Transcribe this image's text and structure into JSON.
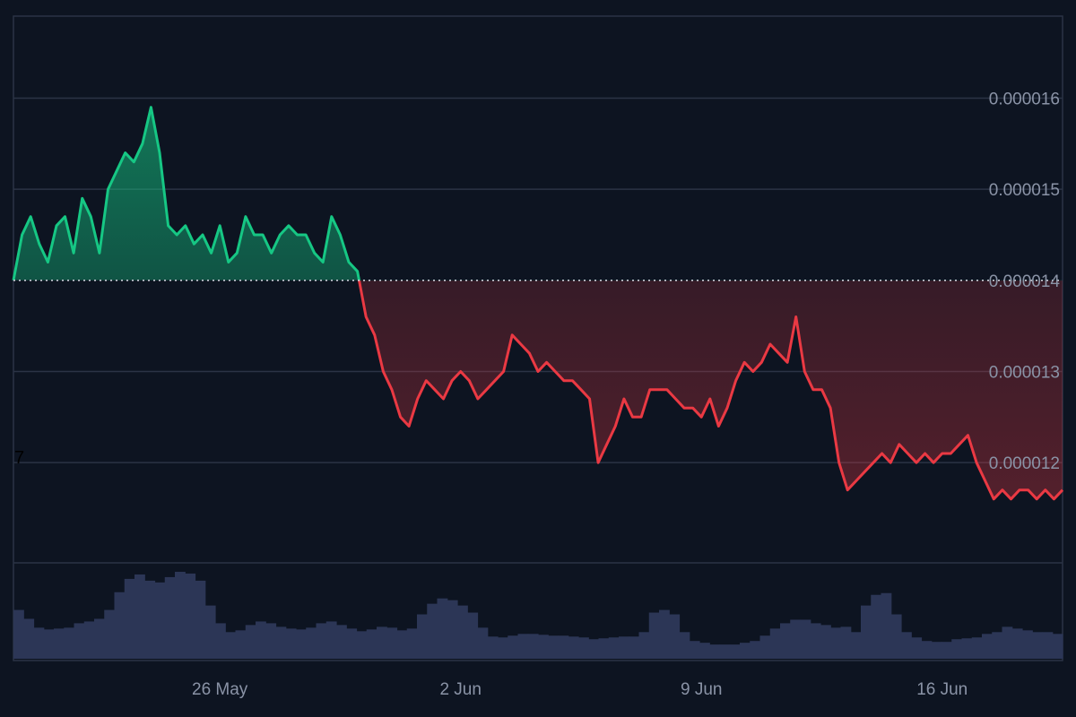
{
  "chart_data": {
    "type": "area",
    "price_series": {
      "x": [
        "2024-05-20T00:00",
        "2024-05-20T06:00",
        "2024-05-20T12:00",
        "2024-05-20T18:00",
        "2024-05-21T00:00",
        "2024-05-21T06:00",
        "2024-05-21T12:00",
        "2024-05-21T18:00",
        "2024-05-22T00:00",
        "2024-05-22T06:00",
        "2024-05-22T12:00",
        "2024-05-22T18:00",
        "2024-05-23T00:00",
        "2024-05-23T06:00",
        "2024-05-23T12:00",
        "2024-05-23T18:00",
        "2024-05-24T00:00",
        "2024-05-24T06:00",
        "2024-05-24T12:00",
        "2024-05-24T18:00",
        "2024-05-25T00:00",
        "2024-05-25T06:00",
        "2024-05-25T12:00",
        "2024-05-25T18:00",
        "2024-05-26T00:00",
        "2024-05-26T06:00",
        "2024-05-26T12:00",
        "2024-05-26T18:00",
        "2024-05-27T00:00",
        "2024-05-27T06:00",
        "2024-05-27T12:00",
        "2024-05-27T18:00",
        "2024-05-28T00:00",
        "2024-05-28T06:00",
        "2024-05-28T12:00",
        "2024-05-28T18:00",
        "2024-05-29T00:00",
        "2024-05-29T06:00",
        "2024-05-29T12:00",
        "2024-05-29T18:00",
        "2024-05-30T00:00",
        "2024-05-30T06:00",
        "2024-05-30T12:00",
        "2024-05-30T18:00",
        "2024-05-31T00:00",
        "2024-05-31T06:00",
        "2024-05-31T12:00",
        "2024-05-31T18:00",
        "2024-06-01T00:00",
        "2024-06-01T06:00",
        "2024-06-01T12:00",
        "2024-06-01T18:00",
        "2024-06-02T00:00",
        "2024-06-02T06:00",
        "2024-06-02T12:00",
        "2024-06-02T18:00",
        "2024-06-03T00:00",
        "2024-06-03T06:00",
        "2024-06-03T12:00",
        "2024-06-03T18:00",
        "2024-06-04T00:00",
        "2024-06-04T06:00",
        "2024-06-04T12:00",
        "2024-06-04T18:00",
        "2024-06-05T00:00",
        "2024-06-05T06:00",
        "2024-06-05T12:00",
        "2024-06-05T18:00",
        "2024-06-06T00:00",
        "2024-06-06T06:00",
        "2024-06-06T12:00",
        "2024-06-06T18:00",
        "2024-06-07T00:00",
        "2024-06-07T06:00",
        "2024-06-07T12:00",
        "2024-06-07T18:00",
        "2024-06-08T00:00",
        "2024-06-08T06:00",
        "2024-06-08T12:00",
        "2024-06-08T18:00",
        "2024-06-09T00:00",
        "2024-06-09T06:00",
        "2024-06-09T12:00",
        "2024-06-09T18:00",
        "2024-06-10T00:00",
        "2024-06-10T06:00",
        "2024-06-10T12:00",
        "2024-06-10T18:00",
        "2024-06-11T00:00",
        "2024-06-11T06:00",
        "2024-06-11T12:00",
        "2024-06-11T18:00",
        "2024-06-12T00:00",
        "2024-06-12T06:00",
        "2024-06-12T12:00",
        "2024-06-12T18:00",
        "2024-06-13T00:00",
        "2024-06-13T06:00",
        "2024-06-13T12:00",
        "2024-06-13T18:00",
        "2024-06-14T00:00",
        "2024-06-14T06:00",
        "2024-06-14T12:00",
        "2024-06-14T18:00",
        "2024-06-15T00:00",
        "2024-06-15T06:00",
        "2024-06-15T12:00",
        "2024-06-15T18:00",
        "2024-06-16T00:00",
        "2024-06-16T06:00",
        "2024-06-16T12:00",
        "2024-06-16T18:00",
        "2024-06-17T00:00",
        "2024-06-17T06:00",
        "2024-06-17T12:00",
        "2024-06-17T18:00",
        "2024-06-18T00:00",
        "2024-06-18T06:00",
        "2024-06-18T12:00",
        "2024-06-18T18:00",
        "2024-06-19T00:00",
        "2024-06-19T06:00",
        "2024-06-19T12:00"
      ],
      "y": [
        1.4e-05,
        1.45e-05,
        1.47e-05,
        1.44e-05,
        1.42e-05,
        1.46e-05,
        1.47e-05,
        1.43e-05,
        1.49e-05,
        1.47e-05,
        1.43e-05,
        1.5e-05,
        1.52e-05,
        1.54e-05,
        1.53e-05,
        1.55e-05,
        1.59e-05,
        1.54e-05,
        1.46e-05,
        1.45e-05,
        1.46e-05,
        1.44e-05,
        1.45e-05,
        1.43e-05,
        1.46e-05,
        1.42e-05,
        1.43e-05,
        1.47e-05,
        1.45e-05,
        1.45e-05,
        1.43e-05,
        1.45e-05,
        1.46e-05,
        1.45e-05,
        1.45e-05,
        1.43e-05,
        1.42e-05,
        1.47e-05,
        1.45e-05,
        1.42e-05,
        1.41e-05,
        1.36e-05,
        1.34e-05,
        1.3e-05,
        1.28e-05,
        1.25e-05,
        1.24e-05,
        1.27e-05,
        1.29e-05,
        1.28e-05,
        1.27e-05,
        1.29e-05,
        1.3e-05,
        1.29e-05,
        1.27e-05,
        1.28e-05,
        1.29e-05,
        1.3e-05,
        1.34e-05,
        1.33e-05,
        1.32e-05,
        1.3e-05,
        1.31e-05,
        1.3e-05,
        1.29e-05,
        1.29e-05,
        1.28e-05,
        1.27e-05,
        1.2e-05,
        1.22e-05,
        1.24e-05,
        1.27e-05,
        1.25e-05,
        1.25e-05,
        1.28e-05,
        1.28e-05,
        1.28e-05,
        1.27e-05,
        1.26e-05,
        1.26e-05,
        1.25e-05,
        1.27e-05,
        1.24e-05,
        1.26e-05,
        1.29e-05,
        1.31e-05,
        1.3e-05,
        1.31e-05,
        1.33e-05,
        1.32e-05,
        1.31e-05,
        1.36e-05,
        1.3e-05,
        1.28e-05,
        1.28e-05,
        1.26e-05,
        1.2e-05,
        1.17e-05,
        1.18e-05,
        1.19e-05,
        1.2e-05,
        1.21e-05,
        1.2e-05,
        1.22e-05,
        1.21e-05,
        1.2e-05,
        1.21e-05,
        1.2e-05,
        1.21e-05,
        1.21e-05,
        1.22e-05,
        1.23e-05,
        1.2e-05,
        1.18e-05,
        1.16e-05,
        1.17e-05,
        1.16e-05,
        1.17e-05,
        1.17e-05,
        1.16e-05,
        1.17e-05,
        1.16e-05,
        1.17e-05
      ],
      "reference_price": 1.4e-05,
      "color_above": "#16c784",
      "color_below": "#ea3943"
    },
    "volume_series": {
      "values": [
        0.55,
        0.45,
        0.35,
        0.33,
        0.34,
        0.35,
        0.4,
        0.42,
        0.45,
        0.55,
        0.75,
        0.9,
        0.95,
        0.88,
        0.86,
        0.92,
        0.98,
        0.96,
        0.88,
        0.6,
        0.4,
        0.3,
        0.32,
        0.38,
        0.42,
        0.4,
        0.36,
        0.34,
        0.33,
        0.35,
        0.4,
        0.42,
        0.38,
        0.34,
        0.31,
        0.33,
        0.36,
        0.35,
        0.32,
        0.34,
        0.5,
        0.62,
        0.68,
        0.66,
        0.6,
        0.52,
        0.35,
        0.25,
        0.24,
        0.26,
        0.28,
        0.28,
        0.27,
        0.26,
        0.26,
        0.25,
        0.24,
        0.22,
        0.23,
        0.24,
        0.25,
        0.25,
        0.3,
        0.52,
        0.55,
        0.5,
        0.3,
        0.2,
        0.18,
        0.16,
        0.16,
        0.16,
        0.18,
        0.2,
        0.26,
        0.34,
        0.4,
        0.44,
        0.44,
        0.4,
        0.38,
        0.35,
        0.36,
        0.3,
        0.6,
        0.72,
        0.74,
        0.5,
        0.3,
        0.24,
        0.2,
        0.19,
        0.19,
        0.22,
        0.23,
        0.24,
        0.28,
        0.3,
        0.36,
        0.34,
        0.32,
        0.3,
        0.3,
        0.28
      ],
      "color": "#2c3656"
    },
    "x_tick_labels": [
      "26 May",
      "2 Jun",
      "9 Jun",
      "16 Jun"
    ],
    "x_tick_dates": [
      "2024-05-26",
      "2024-06-02",
      "2024-06-09",
      "2024-06-16"
    ],
    "y_tick_labels": [
      "0.000016",
      "0.000015",
      "0.000014",
      "0.000013",
      "0.000012"
    ],
    "y_tick_values": [
      1.6e-05,
      1.5e-05,
      1.4e-05,
      1.3e-05,
      1.2e-05
    ],
    "edge_label": "7",
    "xlim": [
      "2024-05-20T00:00",
      "2024-06-19T12:00"
    ],
    "ylim": [
      1.09e-05,
      1.69e-05
    ],
    "grid": true,
    "axis_position": "right"
  }
}
